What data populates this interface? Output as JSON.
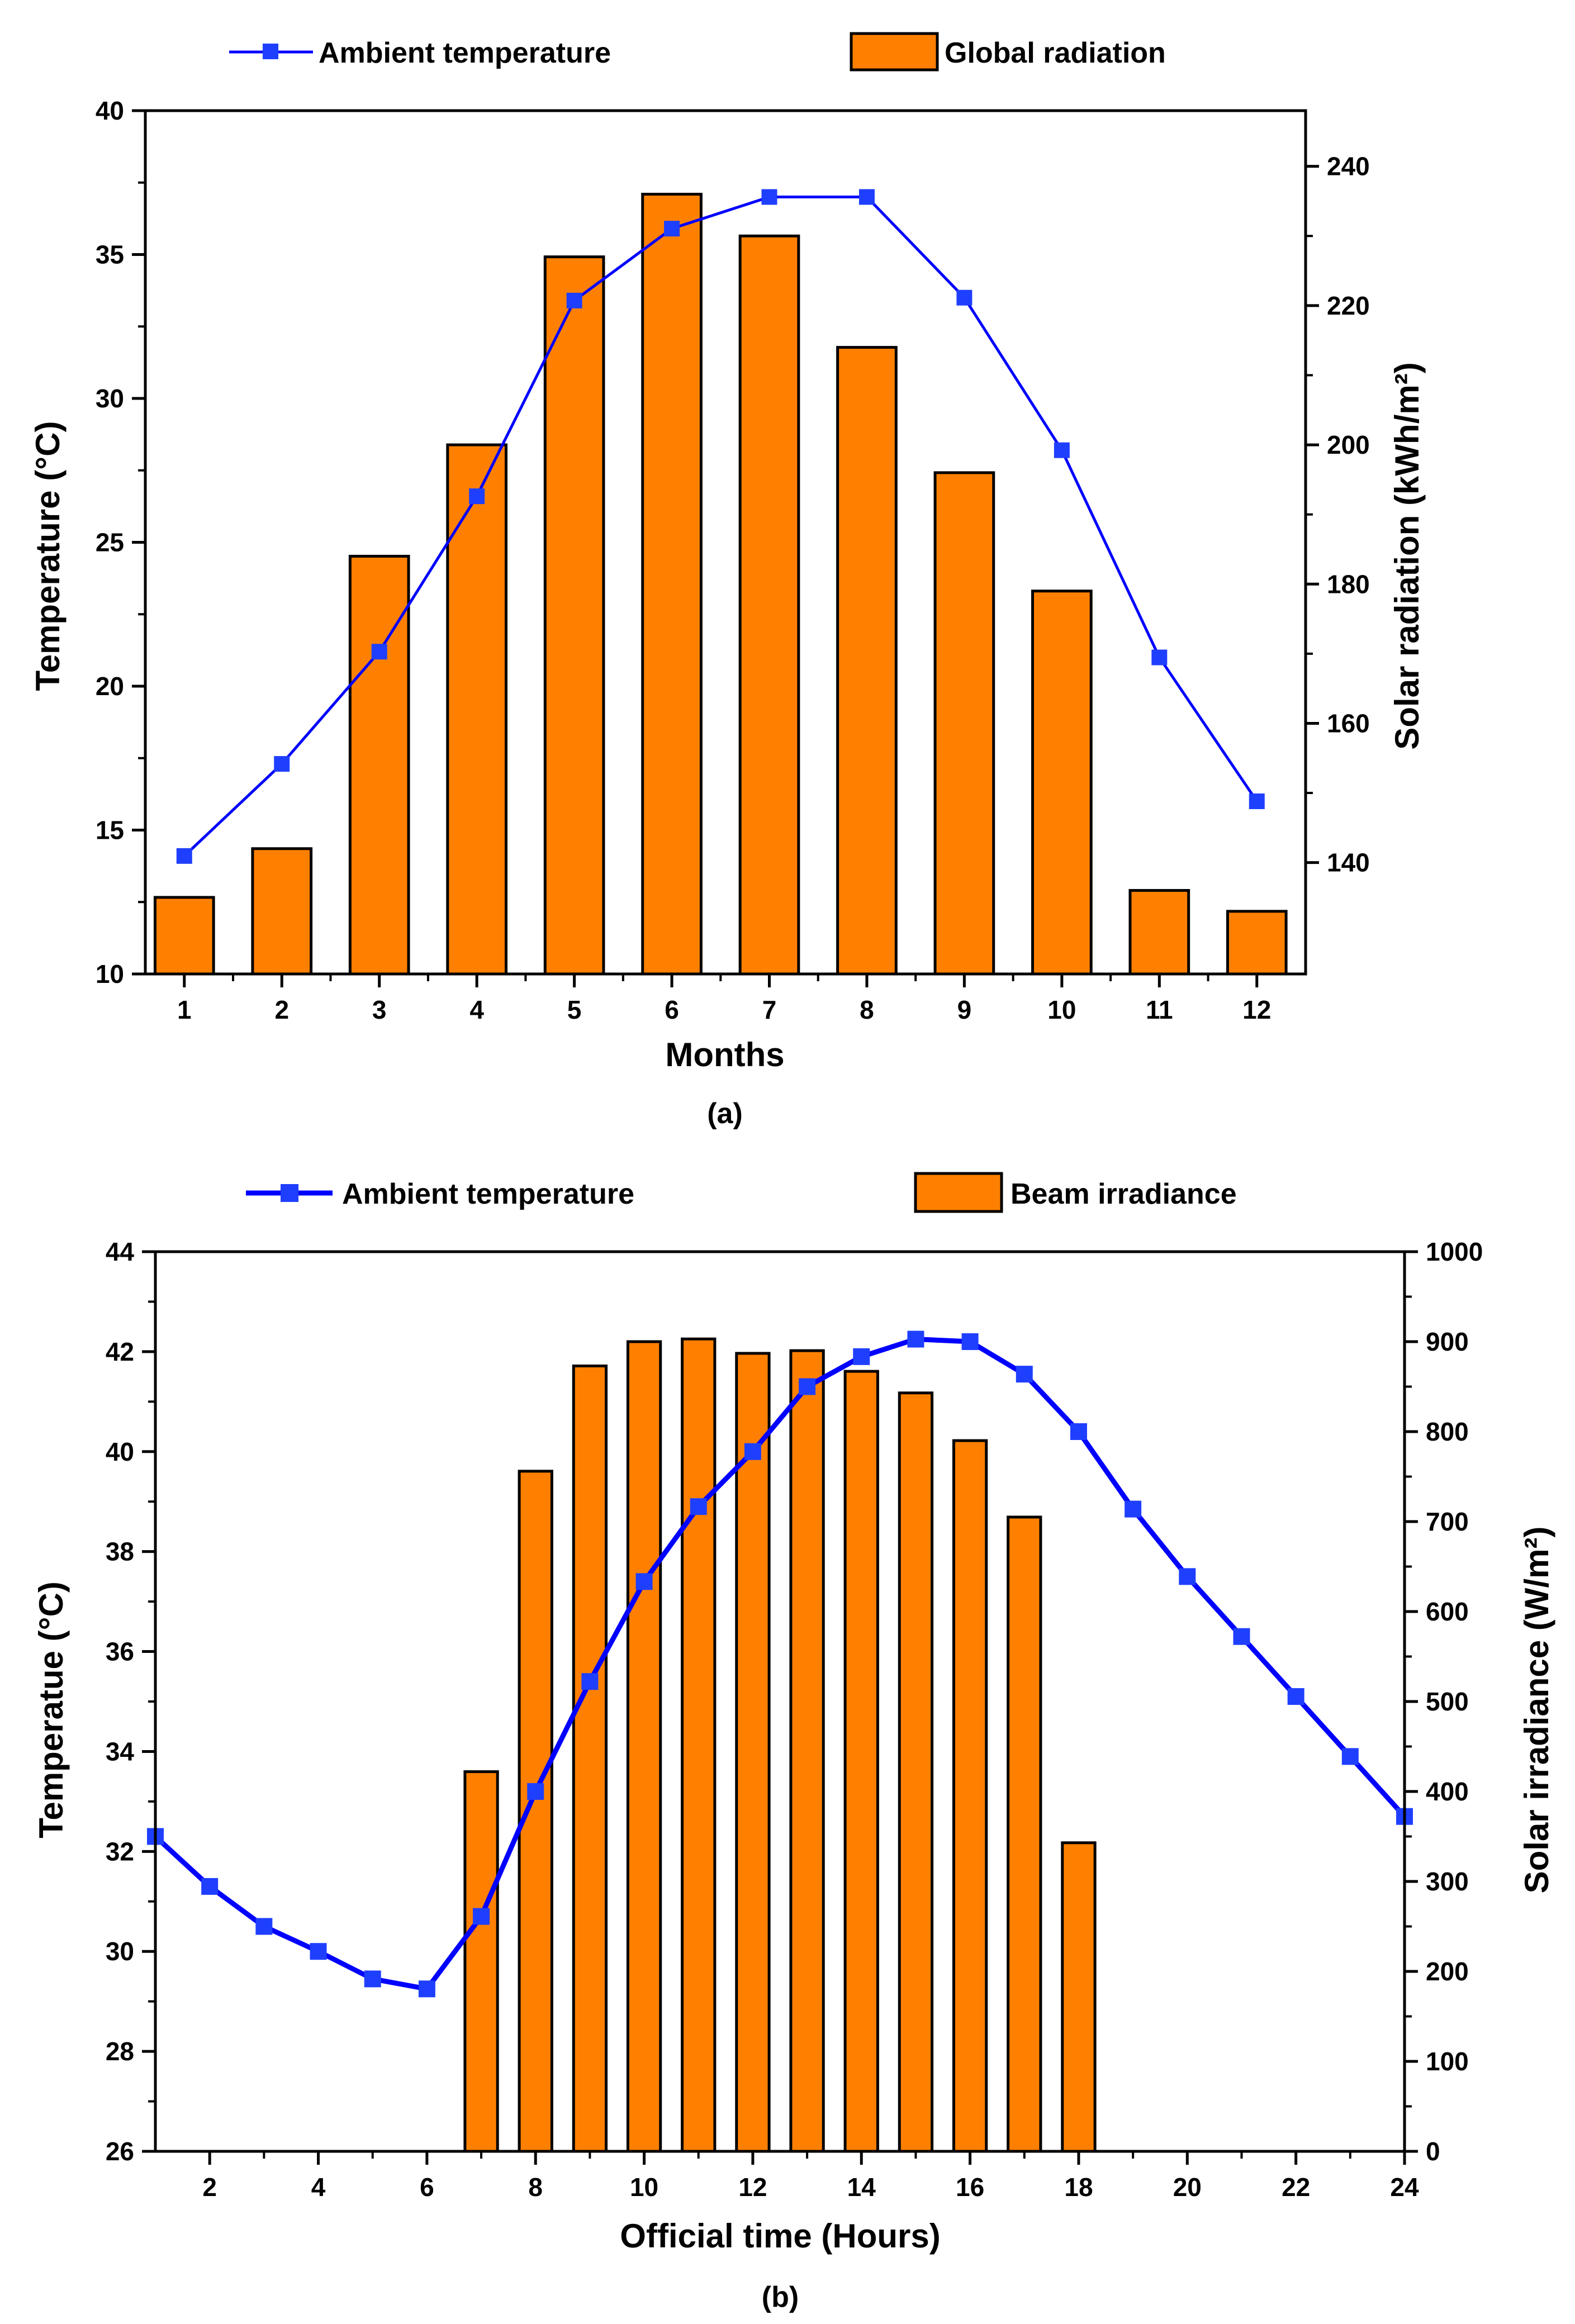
{
  "colors": {
    "line": "#0000ff",
    "marker": "#1f3fff",
    "bar": "#ff8000",
    "bar_stroke": "#000000",
    "axis": "#000000"
  },
  "chart_data": [
    {
      "id": "a",
      "type": "bar+line",
      "caption": "(a)",
      "xlabel": "Months",
      "ylabel_left": "Temperature (°C)",
      "ylabel_right": "Solar radiation (kWh/m²)",
      "xlim": [
        0.6,
        12.5
      ],
      "ylim_left": [
        10,
        40
      ],
      "ylim_right": [
        124,
        248
      ],
      "xticks": [
        1,
        2,
        3,
        4,
        5,
        6,
        7,
        8,
        9,
        10,
        11,
        12
      ],
      "yticks_left": [
        10,
        15,
        20,
        25,
        30,
        35,
        40
      ],
      "yticks_right": [
        140,
        160,
        180,
        200,
        220,
        240
      ],
      "legend": {
        "line_label": "Ambient temperature",
        "bar_label": "Global radiation",
        "placement": "top"
      },
      "bar_width": 0.6,
      "bars": {
        "name": "Global radiation",
        "x": [
          1,
          2,
          3,
          4,
          5,
          6,
          7,
          8,
          9,
          10,
          11,
          12
        ],
        "values": [
          135,
          142,
          184,
          200,
          227,
          236,
          230,
          214,
          196,
          179,
          136,
          133
        ]
      },
      "line": {
        "name": "Ambient temperature",
        "x": [
          1,
          2,
          3,
          4,
          5,
          6,
          7,
          8,
          9,
          10,
          11,
          12
        ],
        "values": [
          14.1,
          17.3,
          21.2,
          26.6,
          33.4,
          35.9,
          37.0,
          37.0,
          33.5,
          28.2,
          21.0,
          16.0
        ]
      }
    },
    {
      "id": "b",
      "type": "bar+line",
      "caption": "(b)",
      "xlabel": "Official time (Hours)",
      "ylabel_left": "Temperatue (°C)",
      "ylabel_right": "Solar irradiance (W/m²)",
      "xlim": [
        1,
        24
      ],
      "ylim_left": [
        26,
        44
      ],
      "ylim_right": [
        0,
        1000
      ],
      "xticks": [
        2,
        4,
        6,
        8,
        10,
        12,
        14,
        16,
        18,
        20,
        22,
        24
      ],
      "yticks_left": [
        26,
        28,
        30,
        32,
        34,
        36,
        38,
        40,
        42,
        44
      ],
      "yticks_right": [
        0,
        100,
        200,
        300,
        400,
        500,
        600,
        700,
        800,
        900,
        1000
      ],
      "legend": {
        "line_label": "Ambient temperature",
        "bar_label": "Beam irradiance",
        "placement": "top"
      },
      "bar_width": 0.6,
      "bars": {
        "name": "Beam irradiance",
        "x": [
          7,
          8,
          9,
          10,
          11,
          12,
          13,
          14,
          15,
          16,
          17,
          18
        ],
        "values": [
          422,
          756,
          873,
          900,
          903,
          887,
          890,
          867,
          843,
          790,
          705,
          343
        ]
      },
      "line": {
        "name": "Ambient temperature",
        "x": [
          1,
          2,
          3,
          4,
          5,
          6,
          7,
          8,
          9,
          10,
          11,
          12,
          13,
          14,
          15,
          16,
          17,
          18,
          19,
          20,
          21,
          22,
          23,
          24
        ],
        "values": [
          32.3,
          31.3,
          30.5,
          30.0,
          29.45,
          29.25,
          30.7,
          33.2,
          35.4,
          37.4,
          38.9,
          40.0,
          41.3,
          41.9,
          42.25,
          42.2,
          41.55,
          40.4,
          38.85,
          37.5,
          36.3,
          35.1,
          33.9,
          32.7
        ]
      }
    }
  ]
}
